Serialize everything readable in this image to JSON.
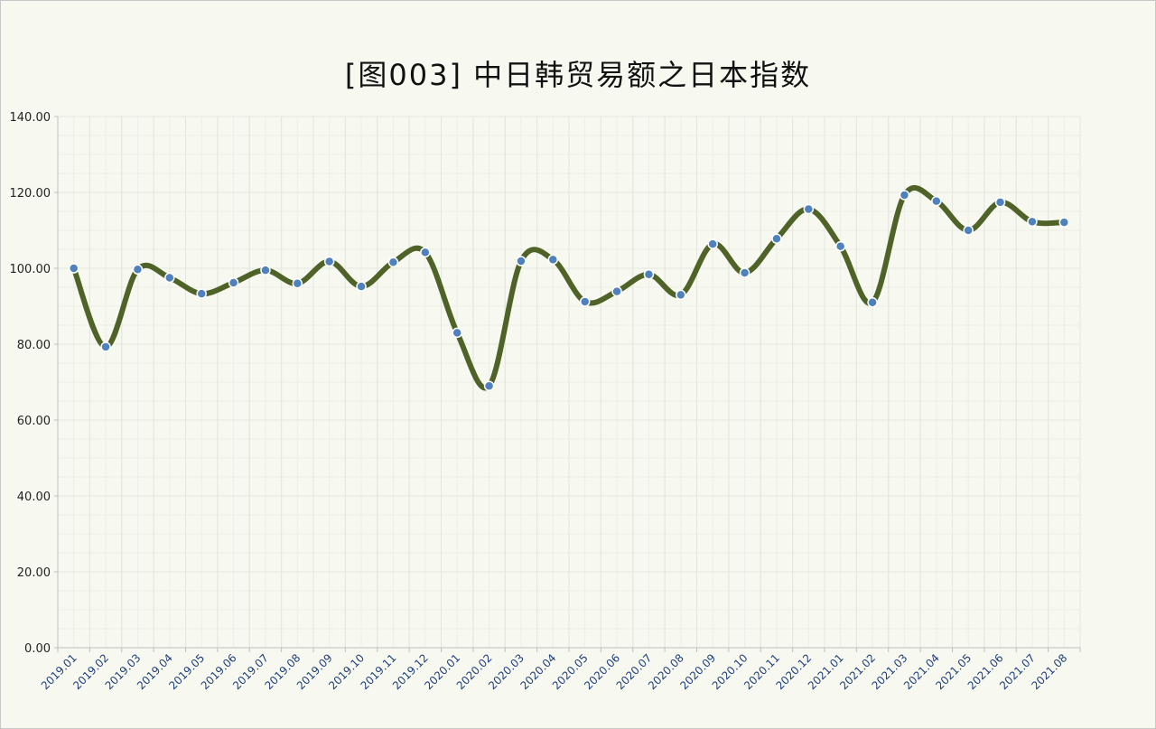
{
  "chart_data": {
    "type": "line",
    "title": "[图003] 中日韩贸易额之日本指数",
    "xlabel": "",
    "ylabel": "",
    "ylim": [
      0,
      140
    ],
    "yticks": [
      "0.00",
      "20.00",
      "40.00",
      "60.00",
      "80.00",
      "100.00",
      "120.00",
      "140.00"
    ],
    "grid": true,
    "legend": "none",
    "categories": [
      "2019.01",
      "2019.02",
      "2019.03",
      "2019.04",
      "2019.05",
      "2019.06",
      "2019.07",
      "2019.08",
      "2019.09",
      "2019.10",
      "2019.11",
      "2019.12",
      "2020.01",
      "2020.02",
      "2020.03",
      "2020.04",
      "2020.05",
      "2020.06",
      "2020.07",
      "2020.08",
      "2020.09",
      "2020.10",
      "2020.11",
      "2020.12",
      "2021.01",
      "2021.02",
      "2021.03",
      "2021.04",
      "2021.05",
      "2021.06",
      "2021.07",
      "2021.08"
    ],
    "series": [
      {
        "values": [
          100.0,
          79.3,
          99.7,
          97.5,
          93.3,
          96.2,
          99.5,
          96.0,
          101.8,
          95.2,
          101.6,
          104.2,
          83.0,
          69.0,
          101.9,
          102.3,
          91.2,
          93.9,
          98.4,
          93.0,
          106.4,
          98.8,
          107.8,
          115.6,
          105.8,
          91.0,
          119.3,
          117.7,
          110.0,
          117.4,
          112.3,
          112.1
        ]
      }
    ],
    "colors": {
      "line": "#4f6228",
      "marker": "#4f81bd",
      "tick_label": "#1f3f7a",
      "background": "#f7f9f1",
      "grid": "#e3e6dc"
    }
  }
}
